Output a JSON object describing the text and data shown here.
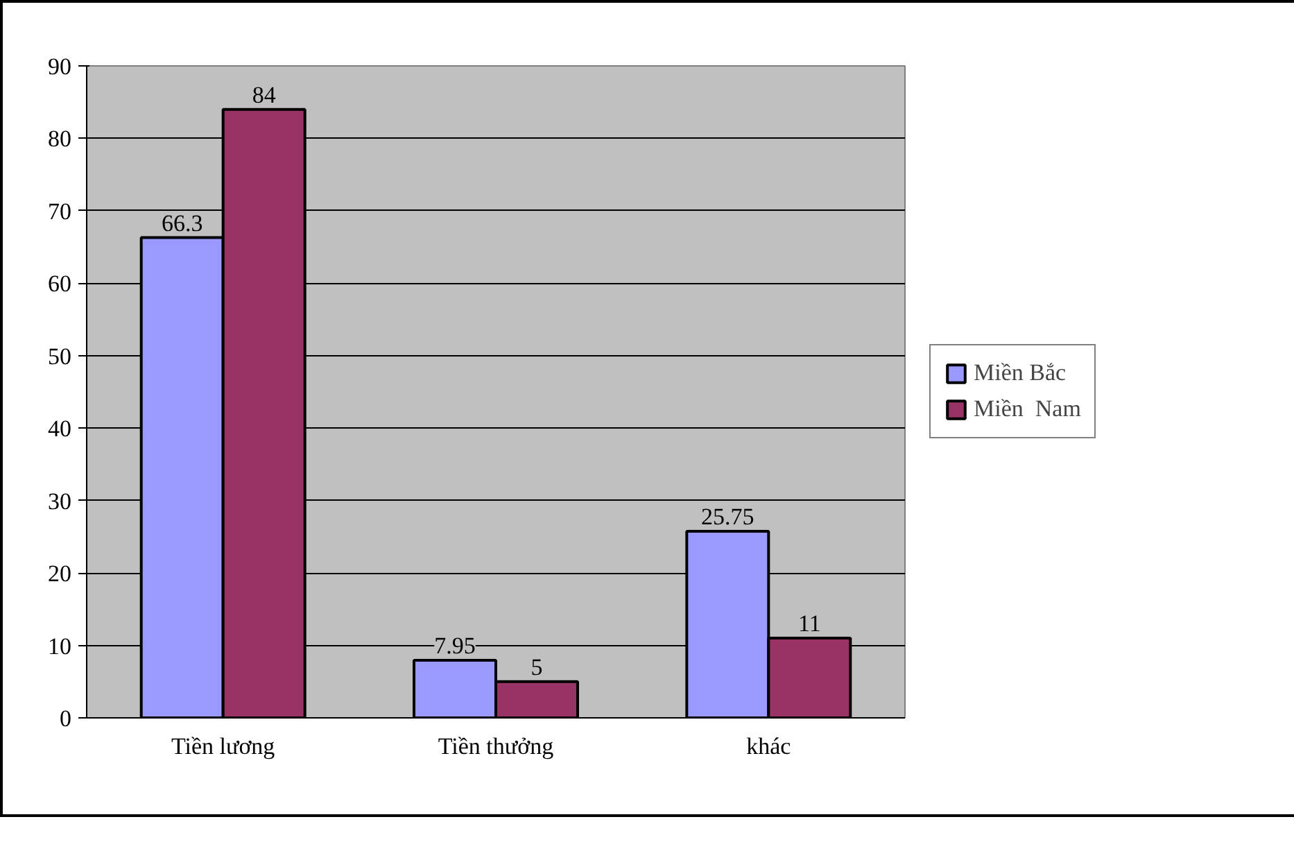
{
  "chart_data": {
    "type": "bar",
    "categories": [
      "Tiền lương",
      "Tiền thưởng",
      "khác"
    ],
    "series": [
      {
        "name": "Miền Bắc",
        "color": "#9999ff",
        "values": [
          66.3,
          7.95,
          25.75
        ]
      },
      {
        "name": "Miền  Nam",
        "color": "#993366",
        "values": [
          84,
          5,
          11
        ]
      }
    ],
    "ylim": [
      0,
      90
    ],
    "yticks": [
      0,
      10,
      20,
      30,
      40,
      50,
      60,
      70,
      80,
      90
    ],
    "grid": "y",
    "legend": "right",
    "data_labels": true
  }
}
